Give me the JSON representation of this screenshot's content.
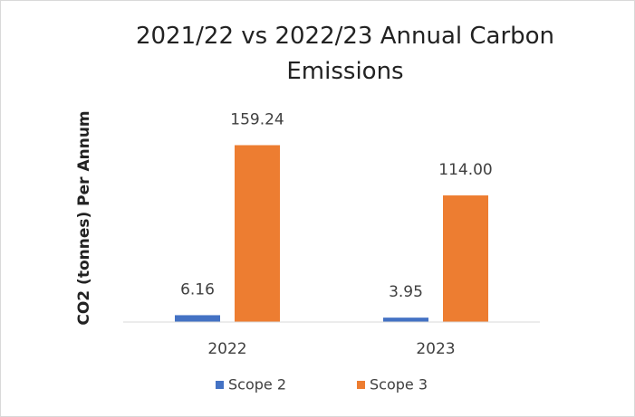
{
  "chart_data": {
    "type": "bar",
    "title": "2021/22 vs 2022/23 Annual Carbon Emissions",
    "y_label": "CO2 (tonnes) Per Annum",
    "categories": [
      "2022",
      "2023"
    ],
    "series": [
      {
        "name": "Scope 2",
        "color": "#4472c4",
        "values": [
          6.16,
          3.95
        ],
        "value_labels": [
          "6.16",
          "3.95"
        ]
      },
      {
        "name": "Scope 3",
        "color": "#ed7d31",
        "values": [
          159.24,
          114.0
        ],
        "value_labels": [
          "159.24",
          "114.00"
        ]
      }
    ],
    "ylim": [
      0,
      180
    ]
  }
}
